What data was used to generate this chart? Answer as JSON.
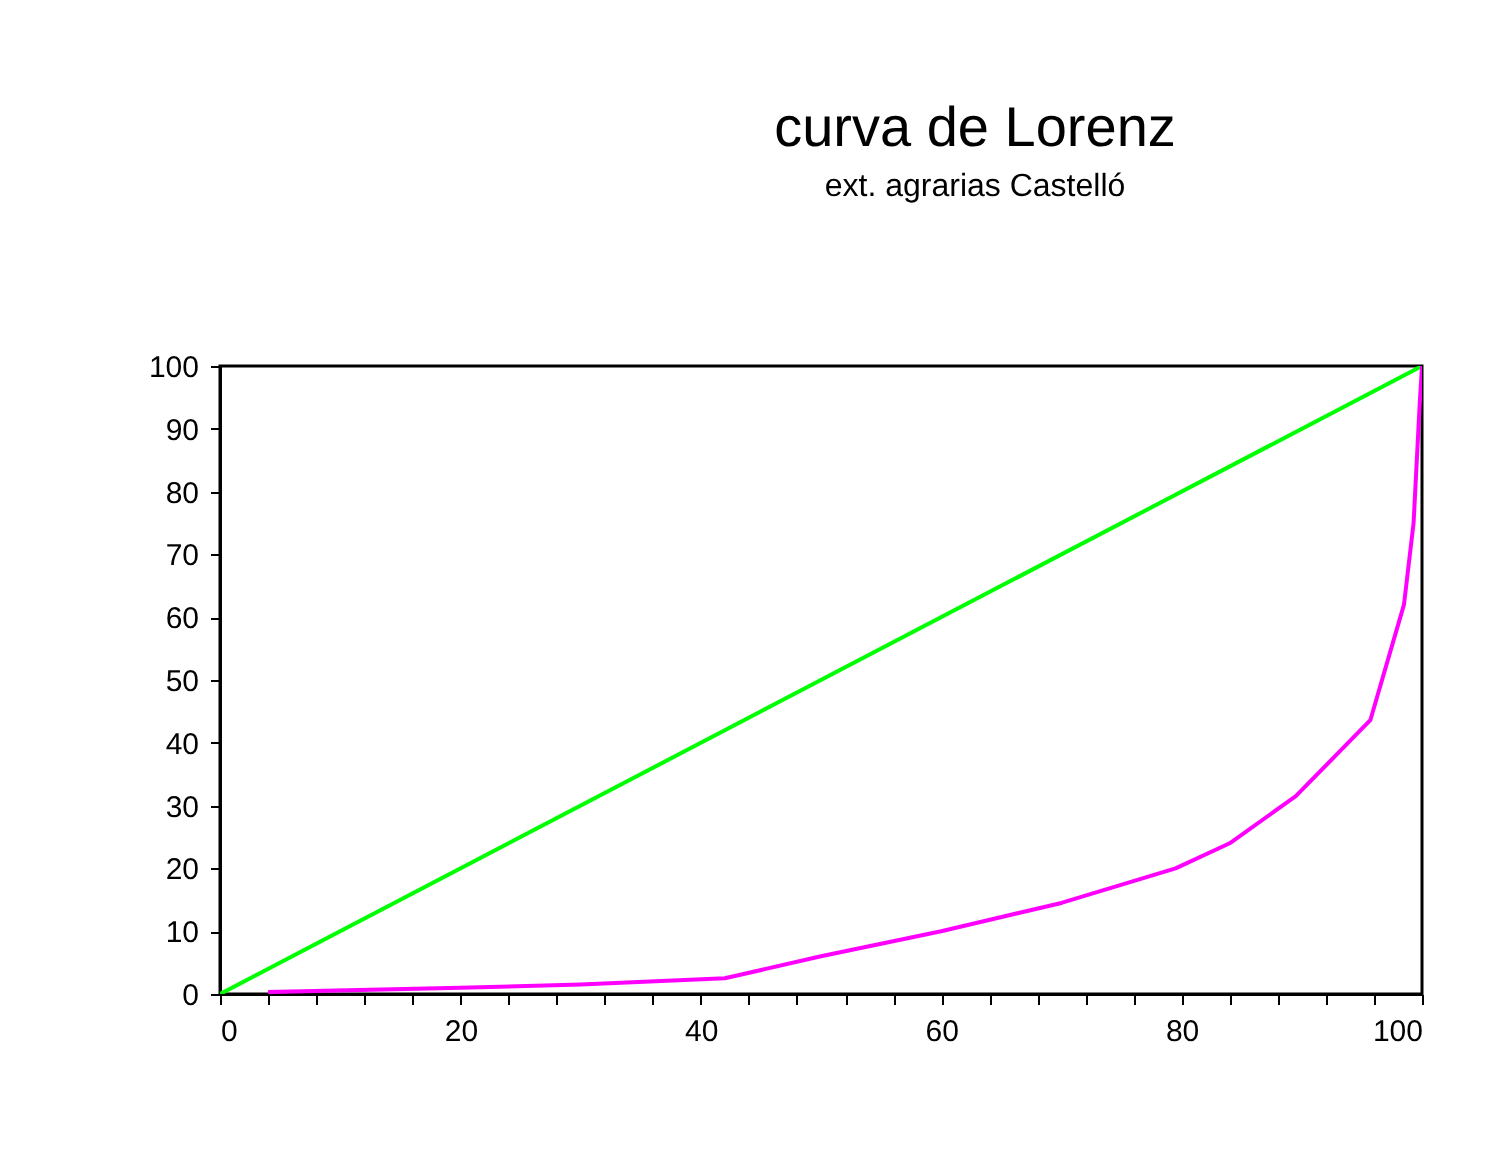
{
  "chart_data": {
    "type": "line",
    "title": "curva de Lorenz",
    "subtitle": "ext. agrarias Castelló",
    "xlim": [
      0,
      100
    ],
    "ylim": [
      0,
      100
    ],
    "xticks": [
      0,
      {
        "value": 4,
        "label": null
      },
      {
        "value": 8,
        "label": null
      },
      {
        "value": 12,
        "label": null
      },
      {
        "value": 16,
        "label": null
      },
      20,
      {
        "value": 24,
        "label": null
      },
      {
        "value": 28,
        "label": null
      },
      {
        "value": 32,
        "label": null
      },
      {
        "value": 36,
        "label": null
      },
      40,
      {
        "value": 44,
        "label": null
      },
      {
        "value": 48,
        "label": null
      },
      {
        "value": 52,
        "label": null
      },
      {
        "value": 56,
        "label": null
      },
      60,
      {
        "value": 64,
        "label": null
      },
      {
        "value": 68,
        "label": null
      },
      {
        "value": 72,
        "label": null
      },
      {
        "value": 76,
        "label": null
      },
      80,
      {
        "value": 84,
        "label": null
      },
      {
        "value": 88,
        "label": null
      },
      {
        "value": 92,
        "label": null
      },
      {
        "value": 96,
        "label": null
      },
      100
    ],
    "yticks": [
      0,
      10,
      20,
      30,
      40,
      50,
      60,
      70,
      80,
      90,
      100
    ],
    "grid": false,
    "marker": "none",
    "line_style": "solid",
    "series": [
      {
        "color": "#00ff00",
        "x": [
          0,
          100
        ],
        "values": [
          0,
          100
        ]
      },
      {
        "color": "#ff00ff",
        "x": [
          4,
          20,
          30,
          42,
          50,
          60,
          70,
          79.5,
          84,
          89.5,
          95.7,
          98.5,
          99.3,
          99.8,
          100
        ],
        "values": [
          0.3,
          1,
          1.5,
          2.5,
          6,
          10,
          14.5,
          20,
          24,
          31.5,
          43.6,
          62,
          75,
          93.6,
          100
        ]
      }
    ]
  }
}
